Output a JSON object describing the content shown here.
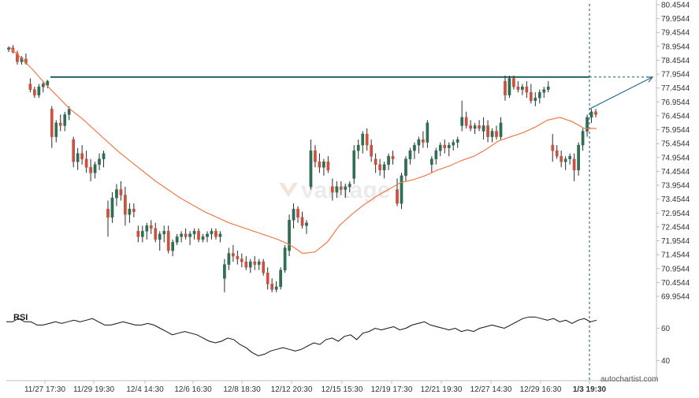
{
  "chart_data": {
    "type": "candlestick",
    "y_ticks": [
      "80.4544",
      "79.9544",
      "79.4544",
      "78.9544",
      "78.4544",
      "77.9544",
      "77.4544",
      "76.9544",
      "76.4544",
      "75.9544",
      "75.4544",
      "74.9544",
      "74.4544",
      "73.9544",
      "73.4544",
      "72.9544",
      "72.4544",
      "71.9544",
      "71.4544",
      "70.9544",
      "70.4544",
      "69.9544"
    ],
    "ylim": [
      69.9544,
      80.4544
    ],
    "x_ticks": [
      "11/27 17:30",
      "11/29 19:30",
      "12/4 14:30",
      "12/6 16:30",
      "12/8 18:30",
      "12/12 20:30",
      "12/15 15:30",
      "12/19 17:30",
      "12/21 19:30",
      "12/27 14:30",
      "12/29 16:30",
      "1/3 19:30"
    ],
    "x_tick_bold_index": 11,
    "resistance_level": 77.85,
    "projection": {
      "from": 76.7,
      "to": 77.85
    },
    "ma_values": [
      78.95,
      78.55,
      78.1,
      77.6,
      77.15,
      76.7,
      76.35,
      75.95,
      75.55,
      75.15,
      74.8,
      74.45,
      74.1,
      73.8,
      73.5,
      73.25,
      73.0,
      72.8,
      72.6,
      72.45,
      72.3,
      72.15,
      72.0,
      71.8,
      71.5,
      71.55,
      71.9,
      72.5,
      72.9,
      73.25,
      73.55,
      73.8,
      74.05,
      74.15,
      74.3,
      74.5,
      74.65,
      74.85,
      75.0,
      75.25,
      75.55,
      75.7,
      75.85,
      76.05,
      76.3,
      76.4,
      76.25,
      76.0,
      76.0
    ],
    "candles": [
      [
        78.85,
        78.95,
        78.75,
        78.9
      ],
      [
        78.9,
        79.0,
        78.7,
        78.75
      ],
      [
        78.7,
        78.8,
        78.3,
        78.4
      ],
      [
        78.4,
        78.6,
        78.3,
        78.55
      ],
      [
        78.5,
        78.7,
        78.3,
        78.35
      ],
      [
        77.6,
        77.8,
        77.3,
        77.4
      ],
      [
        77.4,
        77.5,
        77.1,
        77.2
      ],
      [
        77.2,
        77.6,
        77.1,
        77.5
      ],
      [
        77.5,
        77.7,
        77.3,
        77.6
      ],
      [
        77.55,
        77.75,
        77.45,
        77.7
      ],
      [
        76.7,
        76.8,
        75.3,
        75.7
      ],
      [
        75.7,
        76.3,
        75.5,
        76.2
      ],
      [
        76.2,
        76.5,
        75.9,
        76.1
      ],
      [
        76.1,
        76.6,
        75.9,
        76.5
      ],
      [
        76.5,
        76.8,
        76.3,
        76.7
      ],
      [
        75.6,
        75.7,
        74.6,
        74.8
      ],
      [
        74.8,
        75.3,
        74.5,
        75.1
      ],
      [
        75.1,
        75.4,
        74.7,
        74.9
      ],
      [
        74.9,
        75.2,
        74.4,
        74.6
      ],
      [
        74.6,
        74.9,
        74.1,
        74.4
      ],
      [
        74.4,
        74.8,
        74.2,
        74.7
      ],
      [
        74.7,
        75.1,
        74.5,
        74.9
      ],
      [
        74.9,
        75.2,
        74.6,
        75.1
      ],
      [
        73.1,
        73.4,
        72.1,
        72.8
      ],
      [
        72.8,
        73.7,
        72.6,
        73.5
      ],
      [
        73.5,
        74.0,
        73.2,
        73.8
      ],
      [
        73.8,
        74.1,
        73.4,
        73.6
      ],
      [
        73.6,
        73.9,
        72.5,
        72.9
      ],
      [
        72.9,
        73.3,
        72.6,
        73.1
      ],
      [
        73.1,
        73.3,
        72.8,
        73.0
      ],
      [
        72.3,
        72.5,
        71.9,
        72.1
      ],
      [
        72.1,
        72.5,
        71.9,
        72.3
      ],
      [
        72.3,
        72.6,
        72.0,
        72.5
      ],
      [
        72.5,
        72.7,
        72.2,
        72.4
      ],
      [
        72.4,
        72.6,
        71.9,
        72.0
      ],
      [
        72.0,
        72.3,
        71.6,
        72.2
      ],
      [
        72.2,
        72.5,
        71.9,
        72.3
      ],
      [
        72.3,
        72.5,
        71.5,
        71.6
      ],
      [
        71.6,
        72.0,
        71.4,
        71.9
      ],
      [
        71.9,
        72.2,
        71.8,
        72.1
      ],
      [
        72.1,
        72.3,
        71.9,
        72.2
      ],
      [
        72.2,
        72.4,
        72.0,
        72.1
      ],
      [
        72.1,
        72.3,
        71.8,
        72.2
      ],
      [
        72.2,
        72.4,
        72.0,
        72.3
      ],
      [
        72.3,
        72.4,
        71.9,
        72.0
      ],
      [
        72.0,
        72.2,
        71.9,
        72.1
      ],
      [
        72.1,
        72.3,
        71.9,
        72.2
      ],
      [
        72.2,
        72.4,
        72.0,
        72.3
      ],
      [
        72.3,
        72.4,
        72.0,
        72.1
      ],
      [
        72.1,
        72.3,
        71.9,
        72.2
      ],
      [
        70.6,
        71.3,
        70.1,
        71.1
      ],
      [
        71.1,
        71.7,
        70.9,
        71.5
      ],
      [
        71.5,
        71.8,
        71.2,
        71.4
      ],
      [
        71.4,
        71.6,
        71.1,
        71.3
      ],
      [
        71.3,
        71.5,
        71.0,
        71.2
      ],
      [
        71.2,
        71.4,
        70.9,
        71.0
      ],
      [
        71.0,
        71.3,
        70.8,
        71.2
      ],
      [
        71.2,
        71.4,
        70.9,
        71.1
      ],
      [
        71.1,
        71.3,
        70.9,
        71.2
      ],
      [
        71.2,
        71.3,
        70.7,
        70.8
      ],
      [
        70.8,
        71.0,
        70.2,
        70.4
      ],
      [
        70.4,
        70.6,
        70.1,
        70.2
      ],
      [
        70.2,
        70.5,
        70.1,
        70.3
      ],
      [
        70.3,
        71.0,
        70.2,
        70.9
      ],
      [
        70.9,
        71.8,
        70.8,
        71.7
      ],
      [
        71.6,
        72.9,
        71.4,
        72.7
      ],
      [
        72.7,
        73.3,
        72.4,
        73.1
      ],
      [
        73.1,
        73.2,
        72.6,
        72.8
      ],
      [
        72.8,
        73.0,
        72.4,
        72.5
      ],
      [
        72.5,
        72.7,
        72.2,
        72.6
      ],
      [
        73.9,
        75.6,
        73.8,
        75.2
      ],
      [
        75.2,
        75.4,
        74.6,
        74.8
      ],
      [
        74.8,
        75.1,
        74.4,
        74.6
      ],
      [
        74.6,
        74.9,
        74.3,
        74.8
      ],
      [
        74.8,
        75.0,
        74.4,
        74.5
      ],
      [
        73.9,
        74.2,
        73.4,
        73.7
      ],
      [
        73.7,
        74.1,
        73.5,
        73.9
      ],
      [
        73.9,
        74.1,
        73.6,
        73.8
      ],
      [
        73.8,
        74.0,
        73.5,
        73.9
      ],
      [
        73.9,
        74.1,
        73.7,
        74.0
      ],
      [
        74.2,
        75.4,
        74.0,
        75.2
      ],
      [
        75.2,
        75.6,
        74.9,
        75.4
      ],
      [
        75.4,
        75.9,
        75.1,
        75.8
      ],
      [
        75.8,
        76.0,
        75.2,
        75.4
      ],
      [
        75.4,
        75.6,
        74.8,
        75.0
      ],
      [
        74.9,
        75.1,
        74.4,
        74.7
      ],
      [
        74.7,
        74.9,
        74.3,
        74.5
      ],
      [
        74.5,
        74.8,
        74.2,
        74.7
      ],
      [
        74.7,
        75.1,
        74.5,
        75.0
      ],
      [
        75.0,
        75.2,
        74.7,
        74.9
      ],
      [
        73.8,
        74.2,
        73.2,
        73.3
      ],
      [
        73.3,
        74.4,
        73.1,
        74.3
      ],
      [
        74.3,
        75.0,
        74.1,
        74.9
      ],
      [
        74.9,
        75.3,
        74.7,
        75.2
      ],
      [
        75.2,
        75.5,
        74.9,
        75.4
      ],
      [
        75.4,
        75.7,
        75.1,
        75.6
      ],
      [
        75.6,
        75.9,
        75.3,
        75.5
      ],
      [
        75.5,
        76.3,
        75.3,
        76.2
      ],
      [
        74.7,
        75.0,
        74.4,
        74.9
      ],
      [
        74.9,
        75.3,
        74.7,
        75.2
      ],
      [
        75.2,
        75.5,
        75.0,
        75.4
      ],
      [
        75.4,
        75.6,
        75.1,
        75.3
      ],
      [
        75.3,
        75.5,
        75.0,
        75.4
      ],
      [
        75.4,
        75.6,
        75.2,
        75.5
      ],
      [
        75.5,
        75.7,
        75.3,
        75.6
      ],
      [
        76.1,
        77.0,
        75.9,
        76.4
      ],
      [
        76.4,
        76.6,
        76.0,
        76.1
      ],
      [
        76.1,
        76.3,
        75.9,
        76.0
      ],
      [
        76.0,
        76.2,
        75.8,
        76.1
      ],
      [
        76.1,
        76.3,
        75.9,
        76.0
      ],
      [
        75.9,
        76.4,
        75.6,
        76.1
      ],
      [
        76.1,
        76.3,
        75.5,
        75.7
      ],
      [
        75.7,
        76.0,
        75.5,
        75.9
      ],
      [
        75.9,
        76.1,
        75.6,
        75.7
      ],
      [
        75.7,
        76.4,
        75.6,
        76.2
      ],
      [
        77.7,
        77.9,
        77.0,
        77.2
      ],
      [
        77.2,
        77.9,
        77.1,
        77.8
      ],
      [
        77.8,
        77.9,
        77.4,
        77.5
      ],
      [
        77.5,
        77.7,
        77.3,
        77.4
      ],
      [
        77.4,
        77.6,
        77.2,
        77.5
      ],
      [
        77.5,
        77.7,
        77.1,
        77.3
      ],
      [
        77.3,
        77.6,
        76.9,
        77.0
      ],
      [
        77.0,
        77.3,
        76.8,
        77.1
      ],
      [
        77.1,
        77.4,
        76.9,
        77.3
      ],
      [
        77.3,
        77.5,
        77.1,
        77.4
      ],
      [
        77.4,
        77.7,
        77.3,
        77.5
      ],
      [
        75.4,
        75.8,
        74.8,
        75.2
      ],
      [
        75.2,
        75.4,
        74.9,
        75.0
      ],
      [
        75.0,
        75.2,
        74.6,
        74.8
      ],
      [
        74.8,
        75.0,
        74.5,
        74.9
      ],
      [
        74.9,
        75.1,
        74.7,
        75.0
      ],
      [
        74.9,
        75.1,
        74.1,
        74.5
      ],
      [
        74.5,
        75.5,
        74.3,
        75.4
      ],
      [
        75.4,
        76.0,
        75.2,
        75.9
      ],
      [
        75.9,
        76.5,
        75.7,
        76.4
      ],
      [
        76.4,
        76.7,
        76.2,
        76.6
      ],
      [
        76.6,
        76.7,
        76.4,
        76.5
      ]
    ],
    "rsi": {
      "label": "RSI",
      "ticks": [
        "60",
        "40"
      ],
      "ylim": [
        33,
        70
      ],
      "values": [
        64,
        64,
        66,
        64,
        64,
        62,
        62,
        63,
        64,
        63,
        64,
        65,
        64,
        65,
        66,
        64,
        62,
        62,
        63,
        64,
        63,
        62,
        62,
        63,
        62,
        60,
        58,
        56,
        57,
        58,
        57,
        56,
        54,
        52,
        51,
        52,
        54,
        53,
        50,
        48,
        45,
        43,
        44,
        46,
        47,
        48,
        47,
        46,
        47,
        49,
        51,
        50,
        53,
        54,
        52,
        55,
        56,
        53,
        57,
        58,
        60,
        59,
        60,
        61,
        59,
        60,
        62,
        63,
        64,
        62,
        61,
        60,
        59,
        60,
        58,
        59,
        58,
        60,
        61,
        62,
        61,
        60,
        62,
        64,
        66,
        67,
        67,
        66,
        65,
        66,
        64,
        65,
        63,
        65,
        66,
        64,
        65
      ]
    }
  },
  "footer": {
    "brand": "autochartist.com",
    "watermark": "vantage"
  }
}
